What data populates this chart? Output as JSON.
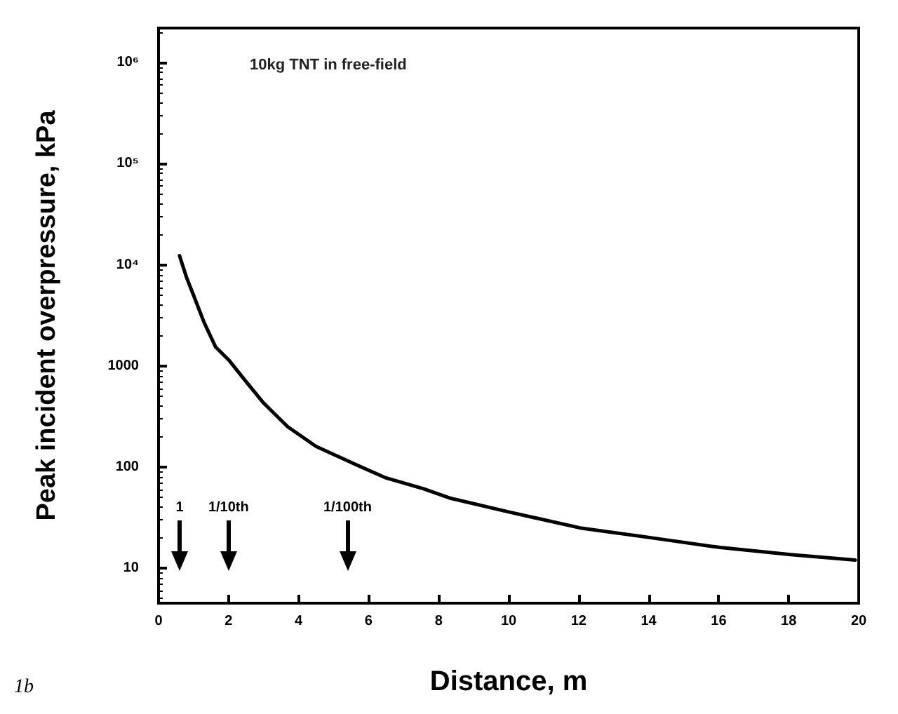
{
  "chart_data": {
    "type": "line",
    "title": "10kg TNT in free-field",
    "xlabel": "Distance, m",
    "ylabel": "Peak incident overpressure, kPa",
    "x": [
      0.6,
      0.8,
      1.0,
      1.3,
      1.63,
      2.02,
      2.5,
      3.0,
      3.69,
      4.5,
      5.63,
      6.5,
      7.57,
      8.35,
      10.0,
      12.04,
      14.06,
      16.04,
      18.06,
      19.9
    ],
    "series": [
      {
        "color": "#000000",
        "values": [
          12300,
          7500,
          5000,
          2700,
          1540,
          1130,
          700,
          430,
          250,
          160,
          106,
          78,
          61,
          49,
          36,
          25,
          20,
          16,
          13.6,
          12
        ]
      }
    ],
    "xlim": [
      0,
      20
    ],
    "xticks": [
      0,
      2,
      4,
      6,
      8,
      10,
      12,
      14,
      16,
      18,
      20
    ],
    "ylim": [
      4.5,
      2200000
    ],
    "yticks": [
      10,
      100,
      1000,
      {
        "value": 10000,
        "label": "10⁴"
      },
      {
        "value": 100000,
        "label": "10⁵"
      },
      {
        "value": 1000000,
        "label": "10⁶"
      }
    ],
    "log": "y",
    "grid": false,
    "marker": "none",
    "line_style": "solid",
    "annotations": [
      "1",
      "1/10th",
      "1/100th",
      "1b"
    ]
  }
}
